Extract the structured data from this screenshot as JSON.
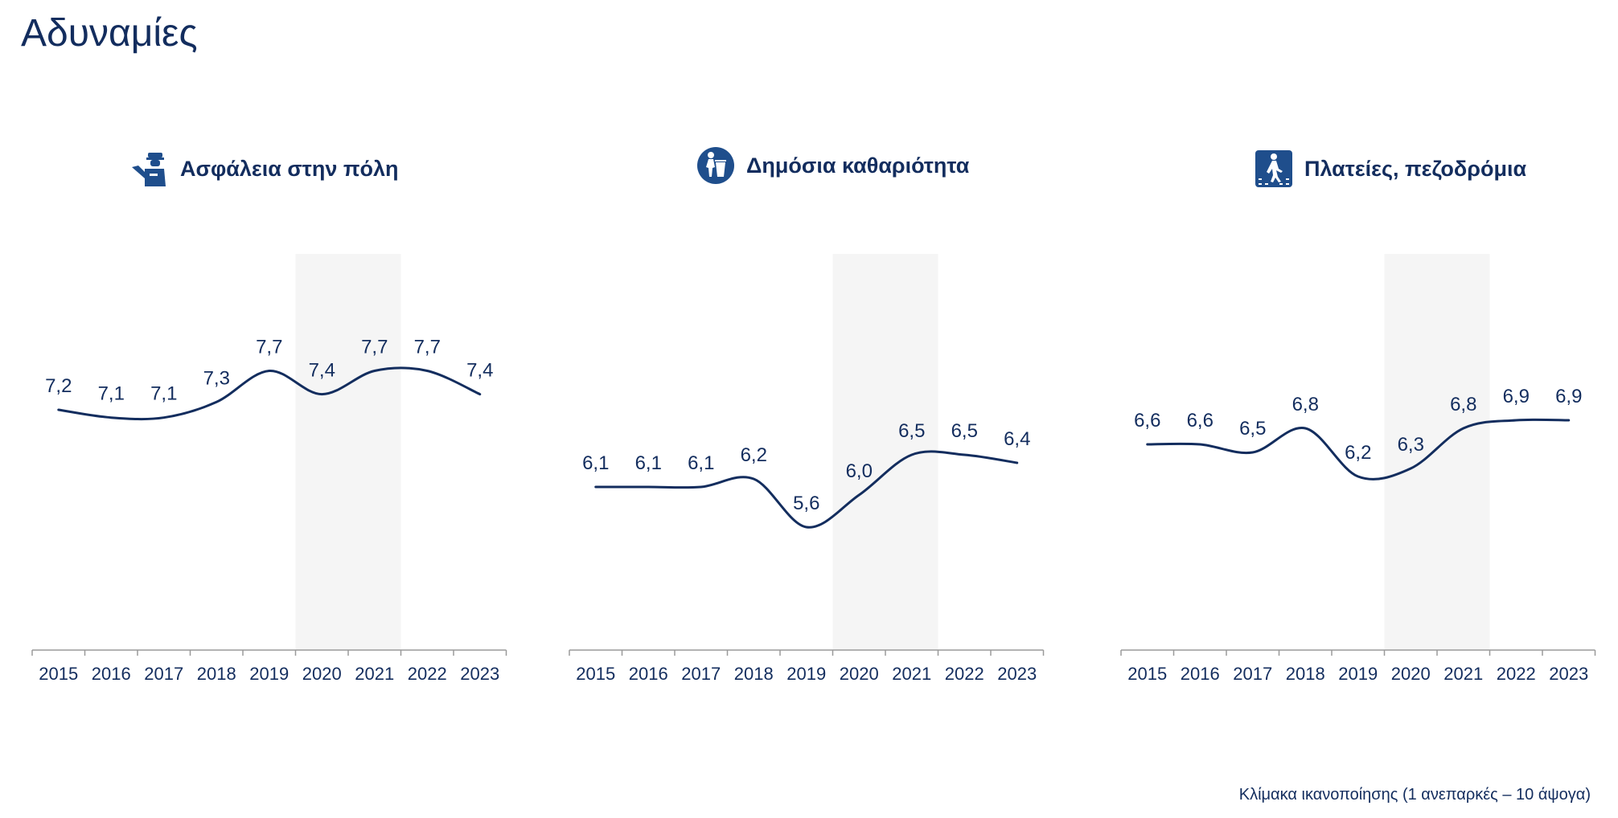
{
  "page": {
    "title": "Αδυναμίες",
    "footnote": "Κλίμακα ικανοποίησης (1 ανεπαρκές – 10 άψογα)"
  },
  "colors": {
    "line": "#132d5e",
    "text": "#132d5e",
    "highlight_band": "#f5f5f5",
    "axis": "#9a9a9a"
  },
  "chart_data": [
    {
      "type": "line",
      "title": "Ασφάλεια στην πόλη",
      "icon": "police-officer-icon",
      "categories": [
        "2015",
        "2016",
        "2017",
        "2018",
        "2019",
        "2020",
        "2021",
        "2022",
        "2023"
      ],
      "values": [
        7.2,
        7.1,
        7.1,
        7.3,
        7.7,
        7.4,
        7.7,
        7.7,
        7.4
      ],
      "value_labels": [
        "7,2",
        "7,1",
        "7,1",
        "7,3",
        "7,7",
        "7,4",
        "7,7",
        "7,7",
        "7,4"
      ],
      "highlight": [
        "2020",
        "2021"
      ],
      "grid": false
    },
    {
      "type": "line",
      "title": "Δημόσια καθαριότητα",
      "icon": "trash-bin-icon",
      "categories": [
        "2015",
        "2016",
        "2017",
        "2018",
        "2019",
        "2020",
        "2021",
        "2022",
        "2023"
      ],
      "values": [
        6.1,
        6.1,
        6.1,
        6.2,
        5.6,
        6.0,
        6.5,
        6.5,
        6.4
      ],
      "value_labels": [
        "6,1",
        "6,1",
        "6,1",
        "6,2",
        "5,6",
        "6,0",
        "6,5",
        "6,5",
        "6,4"
      ],
      "highlight": [
        "2020",
        "2021"
      ],
      "grid": false
    },
    {
      "type": "line",
      "title": "Πλατείες, πεζοδρόμια",
      "icon": "pedestrian-crossing-icon",
      "categories": [
        "2015",
        "2016",
        "2017",
        "2018",
        "2019",
        "2020",
        "2021",
        "2022",
        "2023"
      ],
      "values": [
        6.6,
        6.6,
        6.5,
        6.8,
        6.2,
        6.3,
        6.8,
        6.9,
        6.9
      ],
      "value_labels": [
        "6,6",
        "6,6",
        "6,5",
        "6,8",
        "6,2",
        "6,3",
        "6,8",
        "6,9",
        "6,9"
      ],
      "highlight": [
        "2020",
        "2021"
      ],
      "grid": false
    }
  ]
}
